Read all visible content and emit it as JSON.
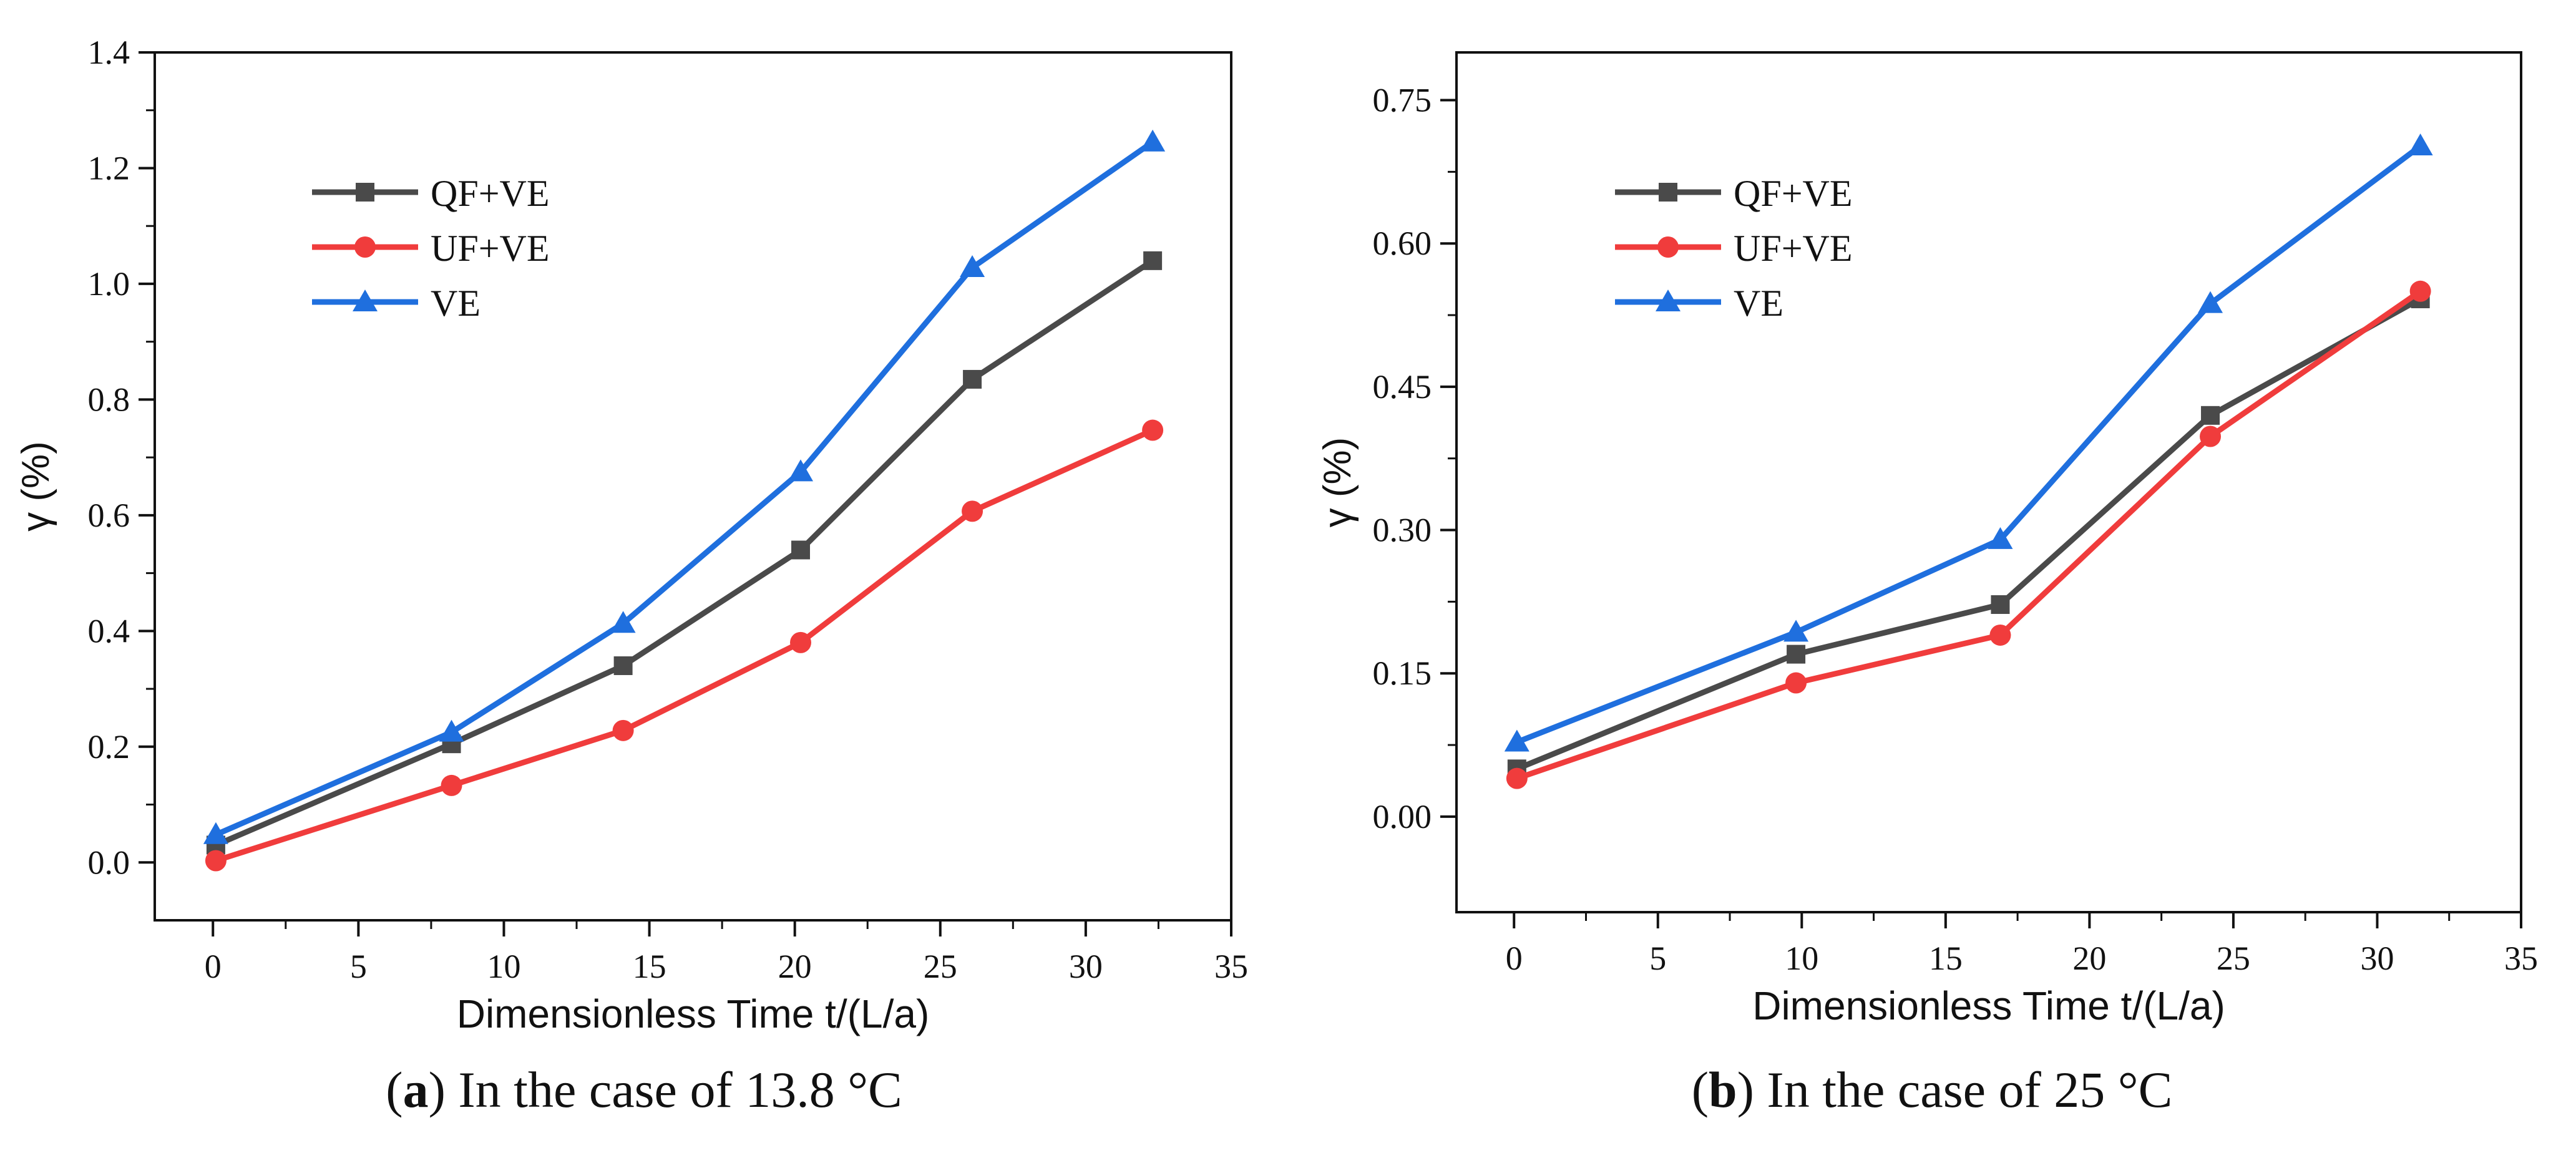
{
  "chart_data": [
    {
      "type": "line",
      "caption_letter": "a",
      "caption_text": ") In the case of 13.8 °C",
      "caption_open": "(",
      "xlabel": "Dimensionless Time  t/(L/a)",
      "ylabel": "γ (%)",
      "xlim": [
        -2,
        35
      ],
      "ylim": [
        -0.1,
        1.4
      ],
      "xticks": [
        0,
        5,
        10,
        15,
        20,
        25,
        30,
        35
      ],
      "yticks": [
        0.0,
        0.2,
        0.4,
        0.6,
        0.8,
        1.0,
        1.2,
        1.4
      ],
      "ytick_labels": [
        "0.0",
        "0.2",
        "0.4",
        "0.6",
        "0.8",
        "1.0",
        "1.2",
        "1.4"
      ],
      "legend_position": "top-left",
      "series": [
        {
          "name": "QF+VE",
          "color": "#4a4a4a",
          "marker": "square",
          "x": [
            0.1,
            8.2,
            14.1,
            20.2,
            26.1,
            32.3
          ],
          "y": [
            0.03,
            0.205,
            0.34,
            0.54,
            0.835,
            1.04
          ]
        },
        {
          "name": "UF+VE",
          "color": "#f03c3c",
          "marker": "circle",
          "x": [
            0.1,
            8.2,
            14.1,
            20.2,
            26.1,
            32.3
          ],
          "y": [
            0.003,
            0.133,
            0.228,
            0.38,
            0.607,
            0.747
          ]
        },
        {
          "name": "VE",
          "color": "#1f6fde",
          "marker": "triangle",
          "x": [
            0.1,
            8.2,
            14.1,
            20.2,
            26.1,
            32.3
          ],
          "y": [
            0.048,
            0.225,
            0.413,
            0.675,
            1.028,
            1.245
          ]
        }
      ]
    },
    {
      "type": "line",
      "caption_letter": "b",
      "caption_text": ") In the case of 25 °C",
      "caption_open": "(",
      "xlabel": "Dimensionless Time  t/(L/a)",
      "ylabel": "γ (%)",
      "xlim": [
        -2,
        35
      ],
      "ylim": [
        -0.1,
        0.8
      ],
      "xticks": [
        0,
        5,
        10,
        15,
        20,
        25,
        30,
        35
      ],
      "yticks": [
        0.0,
        0.15,
        0.3,
        0.45,
        0.6,
        0.75
      ],
      "ytick_labels": [
        "0.00",
        "0.15",
        "0.30",
        "0.45",
        "0.60",
        "0.75"
      ],
      "legend_position": "top-left",
      "series": [
        {
          "name": "QF+VE",
          "color": "#4a4a4a",
          "marker": "square",
          "x": [
            0.1,
            9.8,
            16.9,
            24.2,
            31.5
          ],
          "y": [
            0.05,
            0.17,
            0.222,
            0.42,
            0.542
          ]
        },
        {
          "name": "UF+VE",
          "color": "#f03c3c",
          "marker": "circle",
          "x": [
            0.1,
            9.8,
            16.9,
            24.2,
            31.5
          ],
          "y": [
            0.04,
            0.14,
            0.19,
            0.398,
            0.55
          ]
        },
        {
          "name": "VE",
          "color": "#1f6fde",
          "marker": "triangle",
          "x": [
            0.1,
            9.8,
            16.9,
            24.2,
            31.5
          ],
          "y": [
            0.078,
            0.193,
            0.29,
            0.537,
            0.702
          ]
        }
      ]
    }
  ]
}
